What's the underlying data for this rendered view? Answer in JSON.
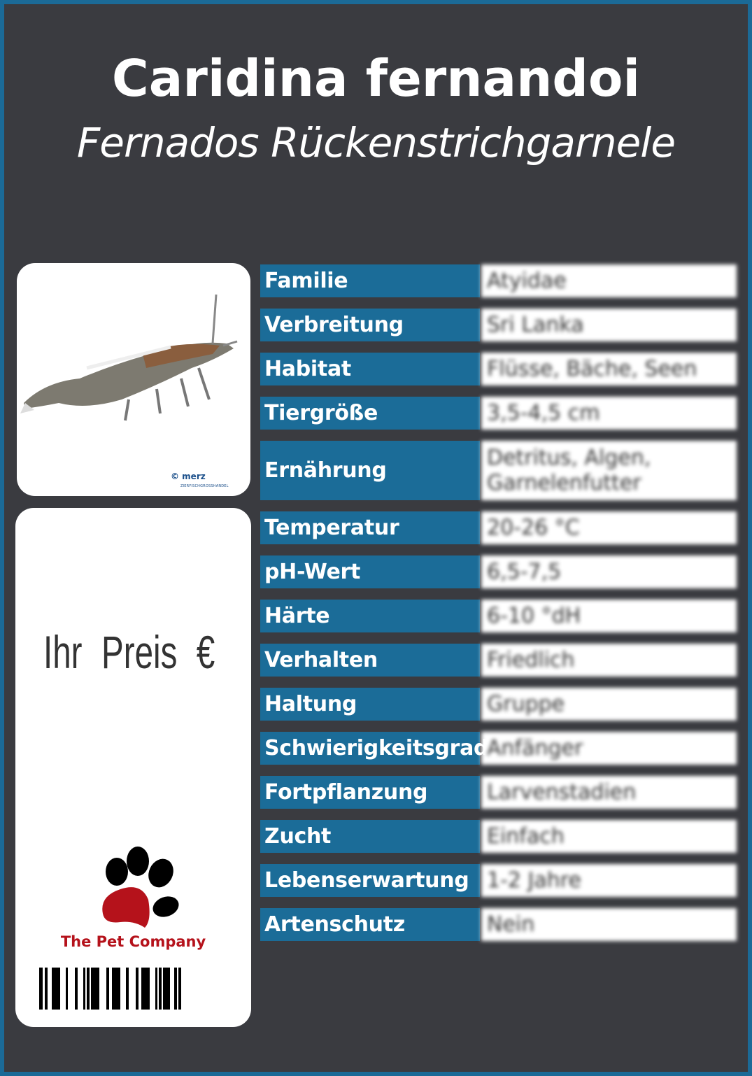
{
  "header": {
    "title": "Caridina fernandoi",
    "subtitle": "Fernados Rückenstrichgarnele"
  },
  "photo": {
    "alt": "shrimp photo",
    "credit": "© merz",
    "credit_sub": "ZIERFISCHGROSSHANDEL"
  },
  "price": {
    "label": "Ihr Preis",
    "currency": "€"
  },
  "brand": {
    "name": "The Pet Company",
    "logo": "paw-icon"
  },
  "colors": {
    "background": "#3a3b40",
    "accent": "#1b6c98",
    "brand": "#b5121b"
  },
  "facts": [
    {
      "label": "Familie",
      "value": "Atyidae"
    },
    {
      "label": "Verbreitung",
      "value": "Sri Lanka"
    },
    {
      "label": "Habitat",
      "value": "Flüsse, Bäche, Seen"
    },
    {
      "label": "Tiergröße",
      "value": "3,5-4,5 cm"
    },
    {
      "label": "Ernährung",
      "value": "Detritus, Algen, Garnelenfutter"
    },
    {
      "label": "Temperatur",
      "value": "20-26 °C"
    },
    {
      "label": "pH-Wert",
      "value": "6,5-7,5"
    },
    {
      "label": "Härte",
      "value": "6-10 °dH"
    },
    {
      "label": "Verhalten",
      "value": "Friedlich"
    },
    {
      "label": "Haltung",
      "value": "Gruppe"
    },
    {
      "label": "Schwierigkeitsgrad",
      "value": "Anfänger"
    },
    {
      "label": "Fortpflanzung",
      "value": "Larvenstadien"
    },
    {
      "label": "Zucht",
      "value": "Einfach"
    },
    {
      "label": "Lebenserwartung",
      "value": "1-2 Jahre"
    },
    {
      "label": "Artenschutz",
      "value": "Nein"
    }
  ]
}
